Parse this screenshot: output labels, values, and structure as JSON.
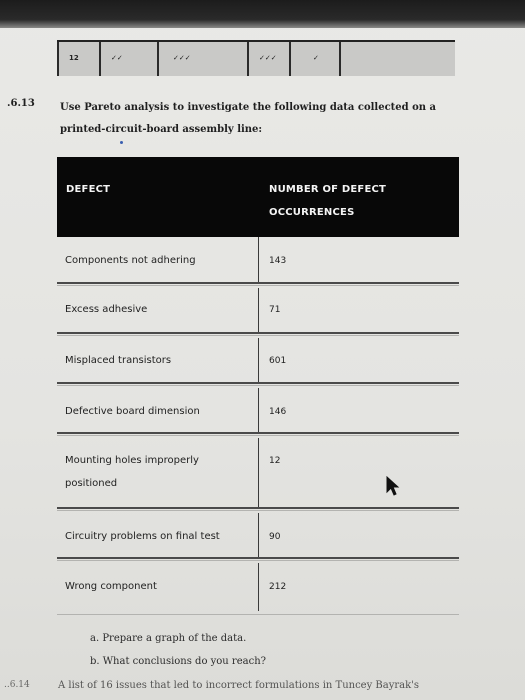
{
  "top_table": {
    "cells": [
      "12",
      "✓✓",
      "✓✓✓",
      "",
      "✓✓✓",
      "✓",
      ""
    ]
  },
  "problem": {
    "number": ".6.13",
    "text_line1": "Use Pareto analysis to investigate the following data collected on a",
    "text_line2": "printed-circuit-board assembly line:"
  },
  "table": {
    "headers": {
      "defect": "DEFECT",
      "occurrences_line1": "NUMBER OF DEFECT",
      "occurrences_line2": "OCCURRENCES"
    },
    "rows": [
      {
        "defect": "Components not adhering",
        "count": "143"
      },
      {
        "defect": "Excess adhesive",
        "count": "71"
      },
      {
        "defect": "Misplaced transistors",
        "count": "601"
      },
      {
        "defect": "Defective board dimension",
        "count": "146"
      },
      {
        "defect_line1": "Mounting holes improperly",
        "defect_line2": "positioned",
        "count": "12"
      },
      {
        "defect": "Circuitry problems on final test",
        "count": "90"
      },
      {
        "defect": "Wrong component",
        "count": "212"
      }
    ]
  },
  "questions": {
    "a": "a. Prepare a graph of the data.",
    "b": "b. What conclusions do you reach?"
  },
  "footer": {
    "number": "..6.14",
    "text": "A list of 16 issues that led to incorrect formulations in Tuncey Bayrak's"
  },
  "colors": {
    "header_bg": "#080808",
    "page_bg": "#e6e6e3",
    "dot": "#3b5fb0"
  }
}
